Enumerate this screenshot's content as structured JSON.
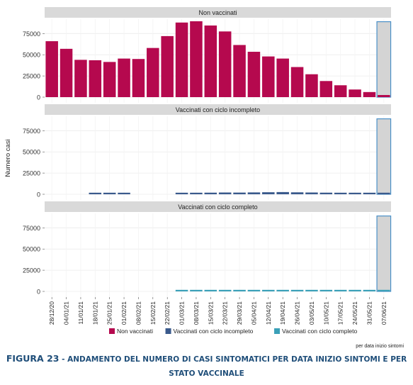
{
  "chart_data": {
    "type": "bar",
    "ylabel": "Numero casi",
    "source_note": "per data inizio sintomi",
    "categories": [
      "28/12/20",
      "04/01/21",
      "11/01/21",
      "18/01/21",
      "25/01/21",
      "01/02/21",
      "08/02/21",
      "15/02/21",
      "22/02/21",
      "01/03/21",
      "08/03/21",
      "15/03/21",
      "22/03/21",
      "29/03/21",
      "05/04/21",
      "12/04/21",
      "19/04/21",
      "26/04/21",
      "03/05/21",
      "10/05/21",
      "17/05/21",
      "24/05/21",
      "31/05/21",
      "07/06/21"
    ],
    "ylim": [
      0,
      92000
    ],
    "yticks": [
      0,
      25000,
      50000,
      75000
    ],
    "grid": true,
    "legend_position": "bottom",
    "highlight": {
      "category": "07/06/21",
      "value": 89000,
      "fill": "#d4d4d4",
      "stroke": "#4a90c8"
    },
    "series": [
      {
        "name": "Non vaccinati",
        "color": "#b5094e",
        "values": [
          66000,
          57000,
          44000,
          43500,
          41500,
          45500,
          45000,
          58000,
          72000,
          88000,
          89500,
          84500,
          77500,
          61500,
          53500,
          48000,
          45500,
          35500,
          27000,
          19000,
          14000,
          9000,
          6000,
          2500
        ]
      },
      {
        "name": "Vaccinati con ciclo incompleto",
        "color": "#3a5a8c",
        "values": [
          0,
          0,
          0,
          600,
          600,
          600,
          0,
          0,
          0,
          900,
          1400,
          1900,
          2100,
          2000,
          2200,
          2400,
          2600,
          2300,
          2100,
          1900,
          1500,
          1100,
          800,
          300
        ]
      },
      {
        "name": "Vaccinati con ciclo completo",
        "color": "#3aa0b8",
        "values": [
          0,
          0,
          0,
          0,
          0,
          0,
          0,
          0,
          0,
          100,
          150,
          200,
          250,
          300,
          350,
          400,
          420,
          400,
          380,
          350,
          320,
          280,
          250,
          150
        ]
      }
    ]
  },
  "caption": {
    "figure_label": "Figura 23",
    "title_line1": "Andamento del numero di casi sintomatici per data inizio sintomi e per",
    "title_line2": "stato vaccinale"
  }
}
